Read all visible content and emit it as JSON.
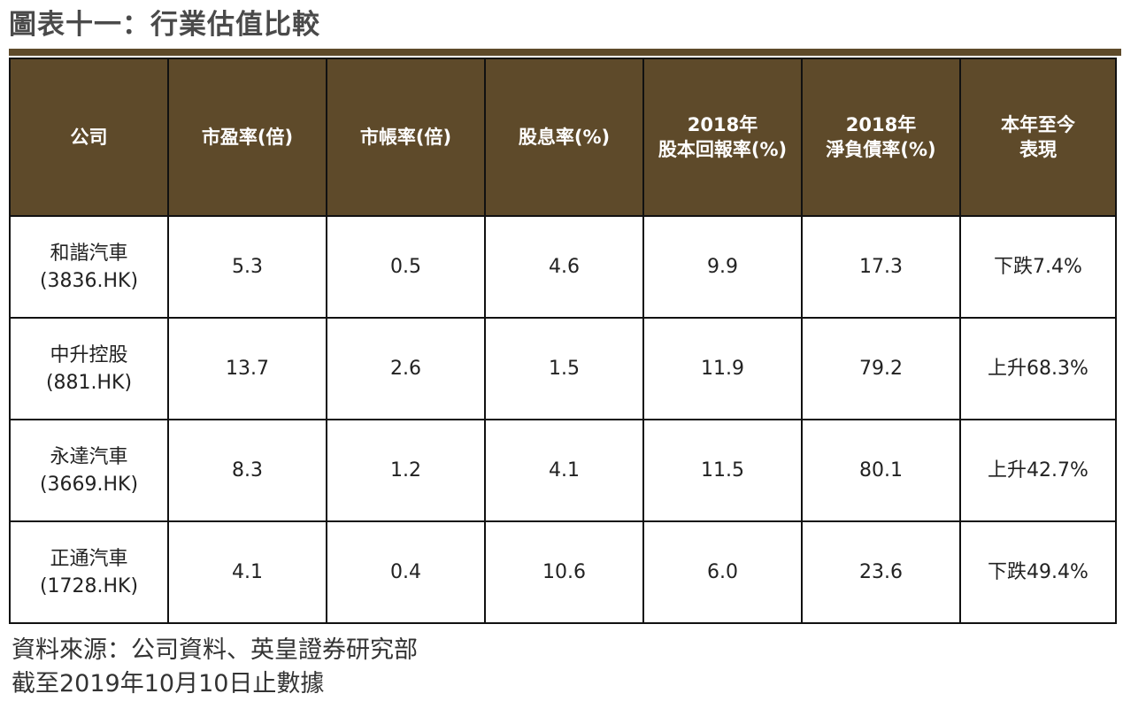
{
  "title": "圖表十一：行業估值比較",
  "header": {
    "company": "公司",
    "pe": "市盈率(倍)",
    "pb": "市帳率(倍)",
    "dividend": "股息率(%)",
    "roe_year": "2018年",
    "roe": "股本回報率(%)",
    "gearing_year": "2018年",
    "gearing": "淨負債率(%)",
    "ytd_line1": "本年至今",
    "ytd_line2": "表現"
  },
  "rows": [
    {
      "name": "和諧汽車",
      "code": "(3836.HK)",
      "pe": "5.3",
      "pb": "0.5",
      "dividend": "4.6",
      "roe": "9.9",
      "gearing": "17.3",
      "ytd": "下跌7.4%"
    },
    {
      "name": "中升控股",
      "code": "(881.HK)",
      "pe": "13.7",
      "pb": "2.6",
      "dividend": "1.5",
      "roe": "11.9",
      "gearing": "79.2",
      "ytd": "上升68.3%"
    },
    {
      "name": "永達汽車",
      "code": "(3669.HK)",
      "pe": "8.3",
      "pb": "1.2",
      "dividend": "4.1",
      "roe": "11.5",
      "gearing": "80.1",
      "ytd": "上升42.7%"
    },
    {
      "name": "正通汽車",
      "code": "(1728.HK)",
      "pe": "4.1",
      "pb": "0.4",
      "dividend": "10.6",
      "roe": "6.0",
      "gearing": "23.6",
      "ytd": "下跌49.4%"
    }
  ],
  "footer": {
    "source": "資料來源：公司資料、英皇證券研究部",
    "as_of": "截至2019年10月10日止數據"
  },
  "colors": {
    "header_bg": "#5e4a2a",
    "header_text": "#ffffff"
  }
}
